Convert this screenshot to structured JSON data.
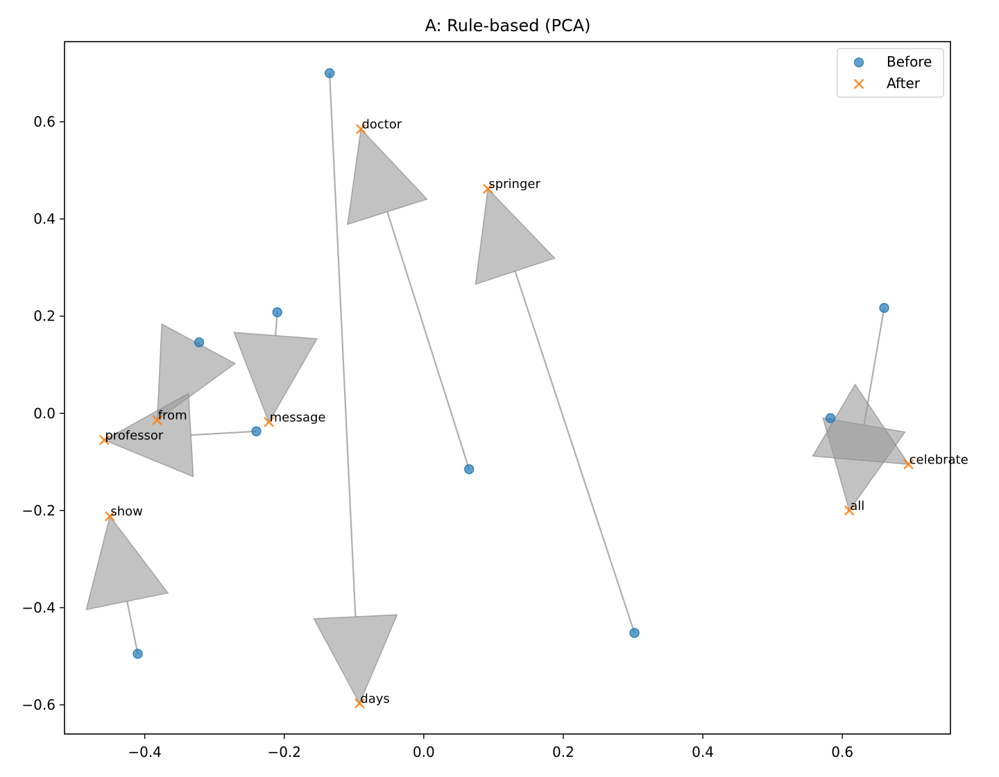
{
  "chart_data": {
    "type": "scatter",
    "title": "A: Rule-based (PCA)",
    "xlabel": "",
    "ylabel": "",
    "xlim": [
      -0.515,
      0.755
    ],
    "ylim": [
      -0.66,
      0.765
    ],
    "xticks": [
      -0.4,
      -0.2,
      0.0,
      0.2,
      0.4,
      0.6
    ],
    "xtick_labels": [
      "−0.4",
      "−0.2",
      "0.0",
      "0.2",
      "0.4",
      "0.6"
    ],
    "yticks": [
      -0.6,
      -0.4,
      -0.2,
      0.0,
      0.2,
      0.4,
      0.6
    ],
    "ytick_labels": [
      "−0.6",
      "−0.4",
      "−0.2",
      "0.0",
      "0.2",
      "0.4",
      "0.6"
    ],
    "grid": false,
    "legend": {
      "placement": "top-right",
      "entries": [
        {
          "label": "Before",
          "marker": "circle",
          "color": "#1f77b4"
        },
        {
          "label": "After",
          "marker": "x",
          "color": "#ff7f0e"
        }
      ]
    },
    "arrow_color": "#a0a0a0",
    "points": [
      {
        "word": "doctor",
        "before": [
          0.065,
          -0.115
        ],
        "after": [
          -0.09,
          0.585
        ]
      },
      {
        "word": "springer",
        "before": [
          0.302,
          -0.452
        ],
        "after": [
          0.092,
          0.462
        ]
      },
      {
        "word": "days",
        "before": [
          -0.135,
          0.7
        ],
        "after": [
          -0.092,
          -0.597
        ]
      },
      {
        "word": "message",
        "before": [
          -0.21,
          0.208
        ],
        "after": [
          -0.222,
          -0.018
        ]
      },
      {
        "word": "from",
        "before": [
          -0.322,
          0.146
        ],
        "after": [
          -0.382,
          -0.014
        ]
      },
      {
        "word": "professor",
        "before": [
          -0.24,
          -0.037
        ],
        "after": [
          -0.458,
          -0.055
        ]
      },
      {
        "word": "show",
        "before": [
          -0.41,
          -0.495
        ],
        "after": [
          -0.45,
          -0.212
        ]
      },
      {
        "word": "all",
        "before": [
          0.66,
          0.217
        ],
        "after": [
          0.61,
          -0.2
        ]
      },
      {
        "word": "celebrate",
        "before": [
          0.583,
          -0.01
        ],
        "after": [
          0.695,
          -0.105
        ]
      }
    ]
  }
}
